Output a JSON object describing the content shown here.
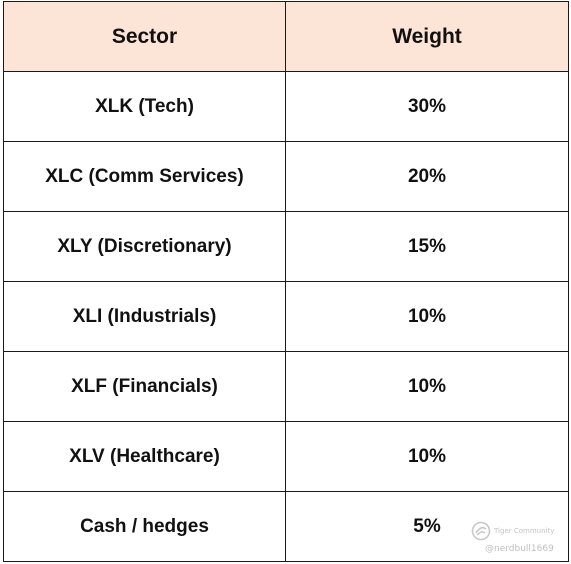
{
  "table": {
    "headers": {
      "sector": "Sector",
      "weight": "Weight"
    },
    "rows": [
      {
        "sector": "XLK (Tech)",
        "weight": "30%"
      },
      {
        "sector": "XLC (Comm Services)",
        "weight": "20%"
      },
      {
        "sector": "XLY (Discretionary)",
        "weight": "15%"
      },
      {
        "sector": "XLI (Industrials)",
        "weight": "10%"
      },
      {
        "sector": "XLF (Financials)",
        "weight": "10%"
      },
      {
        "sector": "XLV (Healthcare)",
        "weight": "10%"
      },
      {
        "sector": "Cash / hedges",
        "weight": "5%"
      }
    ]
  },
  "watermark": {
    "brand": "Tiger Community",
    "handle": "@nerdbull1669",
    "logo_icon": "tiger-logo-icon"
  },
  "colors": {
    "header_background": "#fce4d6",
    "border": "#1a1a1a",
    "text": "#111111",
    "watermark": "#c8c8c8"
  }
}
